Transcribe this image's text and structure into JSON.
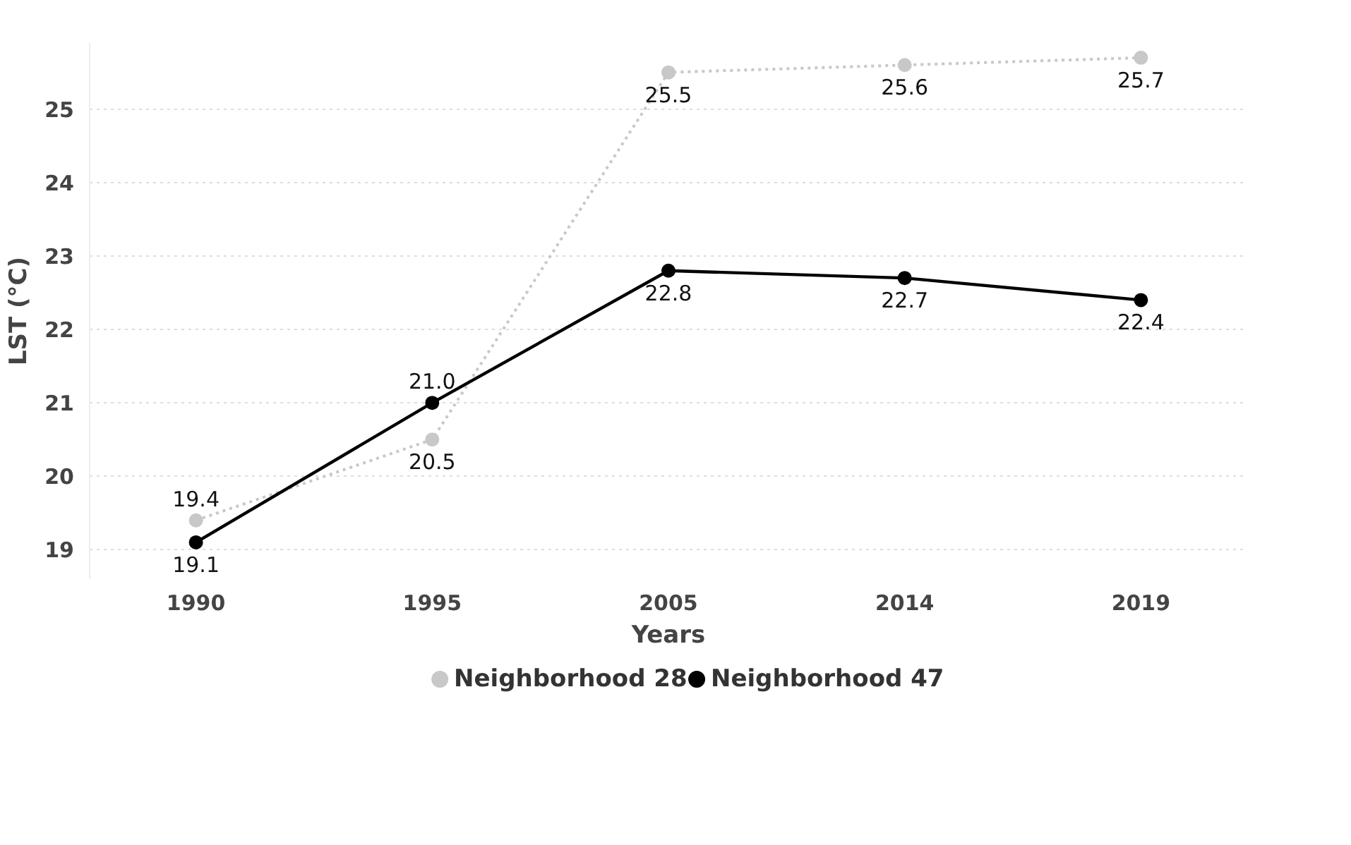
{
  "chart_data": {
    "type": "line",
    "xlabel": "Years",
    "ylabel": "LST (°C)",
    "categories": [
      "1990",
      "1995",
      "2005",
      "2014",
      "2019"
    ],
    "series": [
      {
        "name": "Neighborhood 28",
        "color": "#c8c8c8",
        "line_style": "dotted",
        "values": [
          19.4,
          20.5,
          25.5,
          25.6,
          25.7
        ],
        "value_labels": [
          "19.4",
          "20.5",
          "25.5",
          "25.6",
          "25.7"
        ]
      },
      {
        "name": "Neighborhood 47",
        "color": "#000000",
        "line_style": "solid",
        "values": [
          19.1,
          21.0,
          22.8,
          22.7,
          22.4
        ],
        "value_labels": [
          "19.1",
          "21.0",
          "22.8",
          "22.7",
          "22.4"
        ]
      }
    ],
    "ylim": [
      18.6,
      25.9
    ],
    "yticks": [
      19,
      20,
      21,
      22,
      23,
      24,
      25
    ],
    "grid": "y",
    "legend": "bottom",
    "marker": "circle"
  }
}
